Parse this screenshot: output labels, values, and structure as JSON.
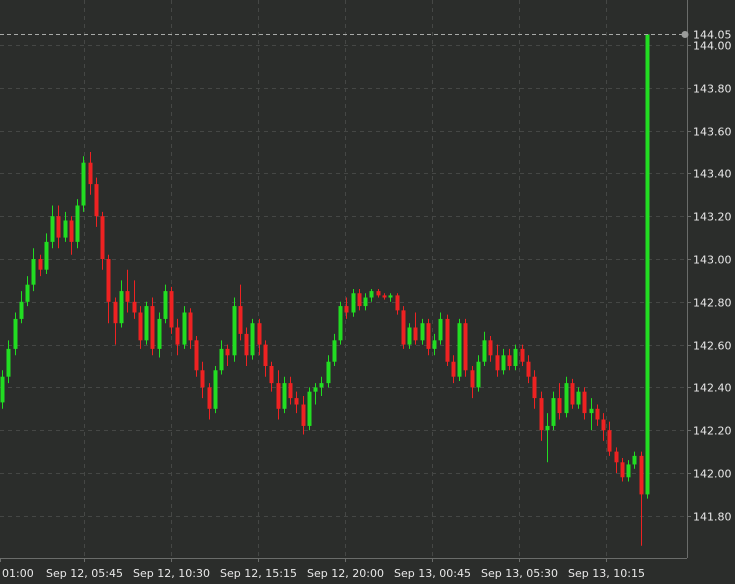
{
  "chart_data": {
    "type": "candlestick",
    "title": "",
    "xlabel": "",
    "ylabel": "",
    "ylim": [
      141.62,
      144.1
    ],
    "grid": true,
    "y_ticks": [
      "141.80",
      "142.00",
      "142.20",
      "142.40",
      "142.60",
      "142.80",
      "143.00",
      "143.20",
      "143.40",
      "143.60",
      "143.80",
      "144.00"
    ],
    "x_ticks": [
      "01:00",
      "Sep 12, 05:45",
      "Sep 12, 10:30",
      "Sep 12, 15:15",
      "Sep 12, 20:00",
      "Sep 13, 00:45",
      "Sep 13, 05:30",
      "Sep 13, 10:15"
    ],
    "last_price_label": "144.05",
    "last_price": 144.05,
    "colors": {
      "up": "#22dd22",
      "down": "#ee2222",
      "background": "#2b2d2b",
      "grid": "#454745",
      "text": "#e8e8e8"
    },
    "candles": [
      [
        142.33,
        142.48,
        142.3,
        142.45
      ],
      [
        142.45,
        142.62,
        142.42,
        142.58
      ],
      [
        142.58,
        142.75,
        142.55,
        142.72
      ],
      [
        142.72,
        142.85,
        142.7,
        142.8
      ],
      [
        142.8,
        142.92,
        142.78,
        142.88
      ],
      [
        142.88,
        143.05,
        142.85,
        143.0
      ],
      [
        143.0,
        143.02,
        142.92,
        142.95
      ],
      [
        142.95,
        143.12,
        142.93,
        143.08
      ],
      [
        143.08,
        143.25,
        143.05,
        143.2
      ],
      [
        143.2,
        143.25,
        143.05,
        143.1
      ],
      [
        143.1,
        143.22,
        143.08,
        143.18
      ],
      [
        143.18,
        143.2,
        143.02,
        143.08
      ],
      [
        143.08,
        143.28,
        143.05,
        143.25
      ],
      [
        143.25,
        143.48,
        143.22,
        143.45
      ],
      [
        143.45,
        143.5,
        143.3,
        143.35
      ],
      [
        143.35,
        143.38,
        143.15,
        143.2
      ],
      [
        143.2,
        143.22,
        142.95,
        143.0
      ],
      [
        143.0,
        143.02,
        142.7,
        142.8
      ],
      [
        142.8,
        142.82,
        142.6,
        142.7
      ],
      [
        142.7,
        142.9,
        142.68,
        142.85
      ],
      [
        142.85,
        142.95,
        142.75,
        142.8
      ],
      [
        142.8,
        142.9,
        142.72,
        142.75
      ],
      [
        142.75,
        142.78,
        142.58,
        142.62
      ],
      [
        142.62,
        142.8,
        142.6,
        142.78
      ],
      [
        142.78,
        142.82,
        142.55,
        142.58
      ],
      [
        142.58,
        142.75,
        142.54,
        142.72
      ],
      [
        142.72,
        142.88,
        142.7,
        142.85
      ],
      [
        142.85,
        142.87,
        142.65,
        142.68
      ],
      [
        142.68,
        142.72,
        142.55,
        142.6
      ],
      [
        142.6,
        142.78,
        142.58,
        142.75
      ],
      [
        142.75,
        142.77,
        142.58,
        142.62
      ],
      [
        142.62,
        142.64,
        142.45,
        142.48
      ],
      [
        142.48,
        142.52,
        142.35,
        142.4
      ],
      [
        142.4,
        142.42,
        142.25,
        142.3
      ],
      [
        142.3,
        142.5,
        142.28,
        142.48
      ],
      [
        142.48,
        142.62,
        142.46,
        142.58
      ],
      [
        142.58,
        142.6,
        142.5,
        142.55
      ],
      [
        142.55,
        142.82,
        142.52,
        142.78
      ],
      [
        142.78,
        142.88,
        142.62,
        142.65
      ],
      [
        142.65,
        142.68,
        142.5,
        142.55
      ],
      [
        142.55,
        142.72,
        142.53,
        142.7
      ],
      [
        142.7,
        142.72,
        142.55,
        142.6
      ],
      [
        142.6,
        142.62,
        142.45,
        142.5
      ],
      [
        142.5,
        142.52,
        142.38,
        142.42
      ],
      [
        142.42,
        142.48,
        142.25,
        142.3
      ],
      [
        142.3,
        142.45,
        142.28,
        142.42
      ],
      [
        142.42,
        142.45,
        142.32,
        142.35
      ],
      [
        142.35,
        142.38,
        142.28,
        142.32
      ],
      [
        142.32,
        142.36,
        142.18,
        142.22
      ],
      [
        142.22,
        142.4,
        142.2,
        142.38
      ],
      [
        142.38,
        142.42,
        142.32,
        142.4
      ],
      [
        142.4,
        142.45,
        142.36,
        142.42
      ],
      [
        142.42,
        142.55,
        142.4,
        142.52
      ],
      [
        142.52,
        142.65,
        142.5,
        142.62
      ],
      [
        142.62,
        142.8,
        142.6,
        142.78
      ],
      [
        142.78,
        142.82,
        142.72,
        142.75
      ],
      [
        142.75,
        142.86,
        142.73,
        142.84
      ],
      [
        142.84,
        142.86,
        142.76,
        142.78
      ],
      [
        142.78,
        142.84,
        142.76,
        142.82
      ],
      [
        142.82,
        142.86,
        142.8,
        142.85
      ],
      [
        142.85,
        142.86,
        142.82,
        142.83
      ],
      [
        142.83,
        142.84,
        142.81,
        142.82
      ],
      [
        142.82,
        142.84,
        142.8,
        142.83
      ],
      [
        142.83,
        142.84,
        142.74,
        142.76
      ],
      [
        142.76,
        142.78,
        142.58,
        142.6
      ],
      [
        142.6,
        142.7,
        142.58,
        142.68
      ],
      [
        142.68,
        142.75,
        142.6,
        142.62
      ],
      [
        142.62,
        142.72,
        142.6,
        142.7
      ],
      [
        142.7,
        142.72,
        142.55,
        142.58
      ],
      [
        142.58,
        142.65,
        142.55,
        142.62
      ],
      [
        142.62,
        142.75,
        142.6,
        142.72
      ],
      [
        142.72,
        142.74,
        142.5,
        142.52
      ],
      [
        142.52,
        142.55,
        142.42,
        142.45
      ],
      [
        142.45,
        142.72,
        142.43,
        142.7
      ],
      [
        142.7,
        142.72,
        142.45,
        142.48
      ],
      [
        142.48,
        142.5,
        142.35,
        142.4
      ],
      [
        142.4,
        142.55,
        142.38,
        142.52
      ],
      [
        142.52,
        142.66,
        142.5,
        142.62
      ],
      [
        142.62,
        142.64,
        142.52,
        142.55
      ],
      [
        142.55,
        142.6,
        142.45,
        142.48
      ],
      [
        142.48,
        142.58,
        142.46,
        142.55
      ],
      [
        142.55,
        142.58,
        142.48,
        142.5
      ],
      [
        142.5,
        142.6,
        142.48,
        142.58
      ],
      [
        142.58,
        142.6,
        142.5,
        142.52
      ],
      [
        142.52,
        142.55,
        142.42,
        142.45
      ],
      [
        142.45,
        142.48,
        142.3,
        142.35
      ],
      [
        142.35,
        142.38,
        142.15,
        142.2
      ],
      [
        142.2,
        142.28,
        142.05,
        142.22
      ],
      [
        142.22,
        142.38,
        142.2,
        142.35
      ],
      [
        142.35,
        142.42,
        142.25,
        142.28
      ],
      [
        142.28,
        142.45,
        142.26,
        142.42
      ],
      [
        142.42,
        142.44,
        142.3,
        142.32
      ],
      [
        142.32,
        142.4,
        142.3,
        142.38
      ],
      [
        142.38,
        142.4,
        142.25,
        142.28
      ],
      [
        142.28,
        142.35,
        142.2,
        142.3
      ],
      [
        142.3,
        142.32,
        142.22,
        142.25
      ],
      [
        142.25,
        142.28,
        142.15,
        142.2
      ],
      [
        142.2,
        142.24,
        142.08,
        142.1
      ],
      [
        142.1,
        142.12,
        142.0,
        142.05
      ],
      [
        142.05,
        142.07,
        141.96,
        141.98
      ],
      [
        141.98,
        142.06,
        141.96,
        142.04
      ],
      [
        142.04,
        142.1,
        142.02,
        142.08
      ],
      [
        142.08,
        142.1,
        141.66,
        141.9
      ],
      [
        141.9,
        144.05,
        141.88,
        144.05
      ]
    ]
  }
}
